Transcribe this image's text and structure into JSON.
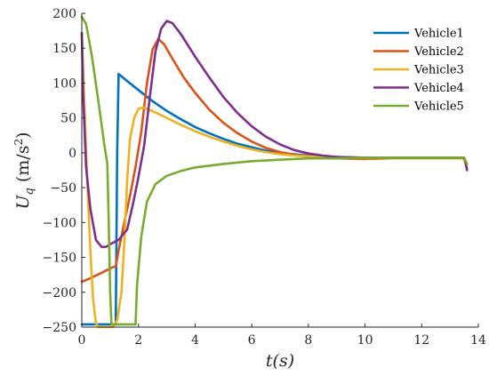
{
  "chart_data": {
    "type": "line",
    "title": "",
    "xlabel": "t(s)",
    "ylabel": "U_q (m/s²)",
    "xlim": [
      0,
      14
    ],
    "ylim": [
      -250,
      200
    ],
    "xticks": [
      0,
      2,
      4,
      6,
      8,
      10,
      12,
      14
    ],
    "yticks": [
      -250,
      -200,
      -150,
      -100,
      -50,
      0,
      50,
      100,
      150,
      200
    ],
    "grid": false,
    "legend": "top-right",
    "series": [
      {
        "name": "Vehicle1",
        "color": "#0072BD",
        "points": [
          [
            0,
            -246
          ],
          [
            1.2,
            -246
          ],
          [
            1.25,
            0
          ],
          [
            1.3,
            113
          ],
          [
            1.6,
            103
          ],
          [
            2,
            90
          ],
          [
            2.5,
            74
          ],
          [
            3,
            60
          ],
          [
            3.5,
            48
          ],
          [
            4,
            37
          ],
          [
            4.5,
            28
          ],
          [
            5,
            20
          ],
          [
            5.5,
            13
          ],
          [
            6,
            8
          ],
          [
            6.5,
            3
          ],
          [
            7,
            0
          ],
          [
            7.5,
            -2
          ],
          [
            8,
            -4
          ],
          [
            8.5,
            -5
          ],
          [
            9,
            -6
          ],
          [
            10,
            -7
          ],
          [
            11,
            -7
          ],
          [
            12,
            -7
          ],
          [
            13,
            -7
          ],
          [
            13.5,
            -7
          ],
          [
            13.55,
            -15
          ],
          [
            13.6,
            -22
          ]
        ]
      },
      {
        "name": "Vehicle2",
        "color": "#D95319",
        "points": [
          [
            0,
            -185
          ],
          [
            0.3,
            -180
          ],
          [
            0.6,
            -174
          ],
          [
            0.9,
            -168
          ],
          [
            1.1,
            -164
          ],
          [
            1.2,
            -163
          ],
          [
            1.3,
            -140
          ],
          [
            1.5,
            -100
          ],
          [
            1.7,
            -62
          ],
          [
            1.9,
            -20
          ],
          [
            2.1,
            30
          ],
          [
            2.3,
            100
          ],
          [
            2.5,
            148
          ],
          [
            2.7,
            163
          ],
          [
            2.9,
            156
          ],
          [
            3.2,
            135
          ],
          [
            3.6,
            108
          ],
          [
            4,
            86
          ],
          [
            4.5,
            62
          ],
          [
            5,
            43
          ],
          [
            5.5,
            28
          ],
          [
            6,
            16
          ],
          [
            6.5,
            7
          ],
          [
            7,
            1
          ],
          [
            7.5,
            -3
          ],
          [
            8,
            -5
          ],
          [
            8.5,
            -7
          ],
          [
            9,
            -8
          ],
          [
            10,
            -9
          ],
          [
            11,
            -8
          ],
          [
            12,
            -8
          ],
          [
            13,
            -8
          ],
          [
            13.5,
            -8
          ],
          [
            13.55,
            -15
          ],
          [
            13.6,
            -22
          ]
        ]
      },
      {
        "name": "Vehicle3",
        "color": "#EDB120",
        "points": [
          [
            0,
            170
          ],
          [
            0.1,
            60
          ],
          [
            0.2,
            -50
          ],
          [
            0.3,
            -140
          ],
          [
            0.4,
            -210
          ],
          [
            0.5,
            -245
          ],
          [
            0.6,
            -250
          ],
          [
            1.1,
            -250
          ],
          [
            1.25,
            -240
          ],
          [
            1.4,
            -200
          ],
          [
            1.5,
            -130
          ],
          [
            1.6,
            -40
          ],
          [
            1.7,
            20
          ],
          [
            1.85,
            50
          ],
          [
            2.0,
            63
          ],
          [
            2.15,
            65
          ],
          [
            2.3,
            63
          ],
          [
            2.6,
            58
          ],
          [
            3,
            50
          ],
          [
            3.5,
            40
          ],
          [
            4,
            31
          ],
          [
            4.5,
            23
          ],
          [
            5,
            16
          ],
          [
            5.5,
            10
          ],
          [
            6,
            5
          ],
          [
            6.5,
            1
          ],
          [
            7,
            -2
          ],
          [
            7.5,
            -4
          ],
          [
            8,
            -5
          ],
          [
            9,
            -7
          ],
          [
            10,
            -8
          ],
          [
            11,
            -8
          ],
          [
            12,
            -8
          ],
          [
            13,
            -8
          ],
          [
            13.5,
            -8
          ],
          [
            13.55,
            -15
          ],
          [
            13.6,
            -22
          ]
        ]
      },
      {
        "name": "Vehicle4",
        "color": "#7E2F8E",
        "points": [
          [
            0,
            172
          ],
          [
            0.05,
            80
          ],
          [
            0.15,
            -20
          ],
          [
            0.3,
            -80
          ],
          [
            0.5,
            -125
          ],
          [
            0.7,
            -135
          ],
          [
            0.85,
            -135
          ],
          [
            1.0,
            -131
          ],
          [
            1.3,
            -125
          ],
          [
            1.6,
            -110
          ],
          [
            1.8,
            -75
          ],
          [
            2.0,
            -35
          ],
          [
            2.2,
            10
          ],
          [
            2.4,
            80
          ],
          [
            2.6,
            145
          ],
          [
            2.8,
            178
          ],
          [
            3.0,
            189
          ],
          [
            3.2,
            186
          ],
          [
            3.5,
            170
          ],
          [
            4,
            138
          ],
          [
            4.5,
            108
          ],
          [
            5,
            80
          ],
          [
            5.5,
            57
          ],
          [
            6,
            38
          ],
          [
            6.5,
            23
          ],
          [
            7,
            12
          ],
          [
            7.5,
            4
          ],
          [
            8,
            -1
          ],
          [
            8.5,
            -4
          ],
          [
            9,
            -6
          ],
          [
            10,
            -7
          ],
          [
            11,
            -7
          ],
          [
            12,
            -7
          ],
          [
            13,
            -7
          ],
          [
            13.5,
            -7
          ],
          [
            13.55,
            -15
          ],
          [
            13.6,
            -25
          ]
        ]
      },
      {
        "name": "Vehicle5",
        "color": "#77AC30",
        "points": [
          [
            0,
            195
          ],
          [
            0.15,
            185
          ],
          [
            0.35,
            140
          ],
          [
            0.6,
            70
          ],
          [
            0.8,
            10
          ],
          [
            0.9,
            -15
          ],
          [
            0.95,
            -100
          ],
          [
            1.0,
            -200
          ],
          [
            1.05,
            -246
          ],
          [
            1.9,
            -246
          ],
          [
            1.95,
            -190
          ],
          [
            2.1,
            -120
          ],
          [
            2.3,
            -70
          ],
          [
            2.6,
            -45
          ],
          [
            3,
            -33
          ],
          [
            3.5,
            -26
          ],
          [
            4,
            -21
          ],
          [
            5,
            -16
          ],
          [
            6,
            -12
          ],
          [
            7,
            -10
          ],
          [
            8,
            -8
          ],
          [
            9,
            -8
          ],
          [
            10,
            -7
          ],
          [
            11,
            -7
          ],
          [
            12,
            -7
          ],
          [
            13,
            -7
          ],
          [
            13.5,
            -7
          ],
          [
            13.55,
            -12
          ],
          [
            13.6,
            -16
          ]
        ]
      }
    ]
  }
}
